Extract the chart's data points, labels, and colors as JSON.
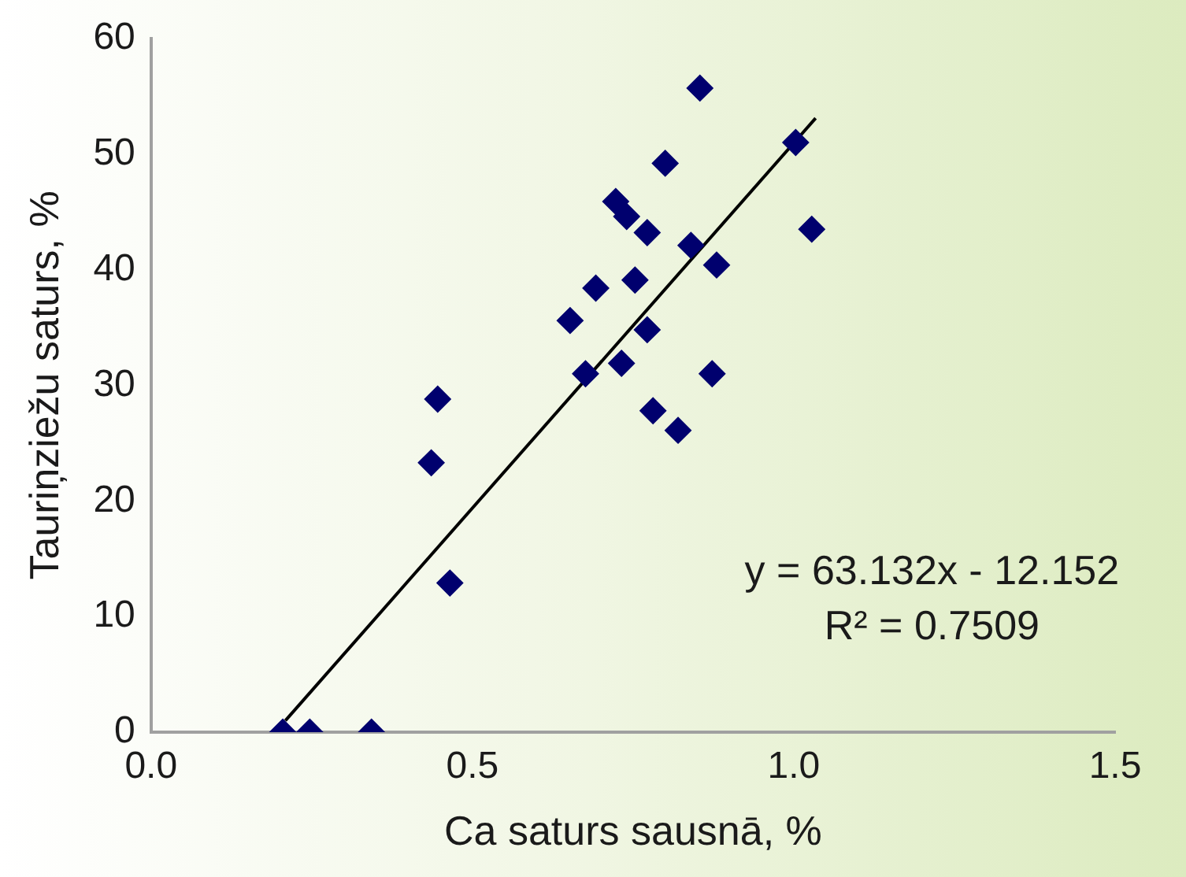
{
  "chart_data": {
    "type": "scatter",
    "xlabel": "Ca saturs sausnā, %",
    "ylabel": "Tauriņziežu saturs, %",
    "xlim": [
      0,
      1.5
    ],
    "xticks": [
      {
        "value": 0,
        "label": "0.0"
      },
      {
        "value": 0.5,
        "label": "0.5"
      },
      {
        "value": 1,
        "label": "1.0"
      },
      {
        "value": 1.5,
        "label": "1.5"
      }
    ],
    "ylim": [
      0,
      60
    ],
    "yticks": [
      0,
      10,
      20,
      30,
      40,
      50,
      60
    ],
    "grid": false,
    "legend": false,
    "marker": "diamond",
    "annotations": [
      "y = 63.132x - 12.152",
      "R² = 0.7509"
    ],
    "series": [
      {
        "type": "scatter",
        "color": "#00006e",
        "x": [
          0.205,
          0.247,
          0.343,
          0.436,
          0.446,
          0.465,
          0.652,
          0.692,
          0.676,
          0.732,
          0.723,
          0.74,
          0.753,
          0.772,
          0.772,
          0.781,
          0.82,
          0.8,
          0.84,
          0.854,
          0.873,
          0.88,
          1.003,
          1.028
        ],
        "values": [
          0,
          0,
          0,
          23.3,
          28.8,
          12.9,
          35.6,
          38.4,
          31.0,
          31.9,
          45.9,
          44.6,
          39.1,
          43.2,
          34.8,
          27.8,
          26.1,
          49.2,
          42.1,
          55.7,
          31.0,
          40.4,
          51.0,
          43.5
        ]
      },
      {
        "type": "line",
        "color": "#000000",
        "marker": "none",
        "line_style": "solid",
        "x": [
          0.209,
          1.034
        ],
        "values": [
          1.0,
          53.1
        ]
      }
    ]
  }
}
